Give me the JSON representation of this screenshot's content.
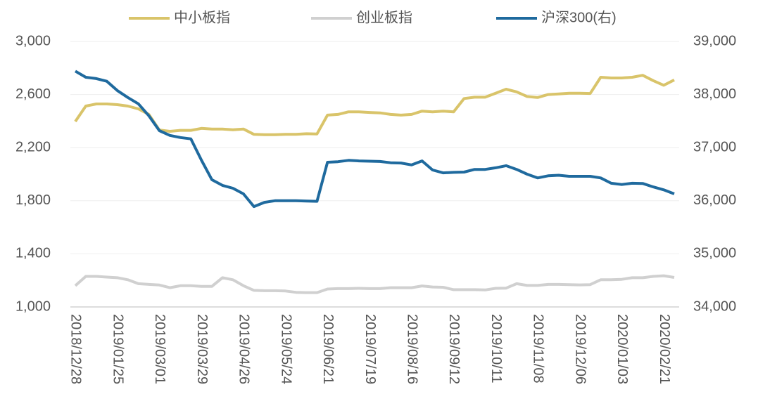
{
  "chart_data": {
    "type": "line",
    "categories": [
      "2018/12/28",
      null,
      null,
      null,
      "2019/01/25",
      null,
      null,
      null,
      "2019/03/01",
      null,
      null,
      null,
      "2019/03/29",
      null,
      null,
      null,
      "2019/04/26",
      null,
      null,
      null,
      "2019/05/24",
      null,
      null,
      null,
      "2019/06/21",
      null,
      null,
      null,
      "2019/07/19",
      null,
      null,
      null,
      "2019/08/16",
      null,
      null,
      null,
      "2019/09/12",
      null,
      null,
      null,
      "2019/10/11",
      null,
      null,
      null,
      "2019/11/08",
      null,
      null,
      null,
      "2019/12/06",
      null,
      null,
      null,
      "2020/01/03",
      null,
      null,
      null,
      "2020/02/21",
      null
    ],
    "series": [
      {
        "name": "中小板指",
        "color": "#d9c46a",
        "values": [
          2397,
          2513,
          2529,
          2529,
          2524,
          2513,
          2492,
          2450,
          2333,
          2323,
          2330,
          2330,
          2345,
          2340,
          2340,
          2335,
          2340,
          2300,
          2298,
          2298,
          2300,
          2300,
          2305,
          2303,
          2445,
          2450,
          2470,
          2470,
          2465,
          2462,
          2450,
          2445,
          2450,
          2475,
          2470,
          2475,
          2470,
          2570,
          2580,
          2580,
          2610,
          2640,
          2620,
          2585,
          2578,
          2600,
          2605,
          2610,
          2610,
          2608,
          2730,
          2725,
          2725,
          2730,
          2745,
          2705,
          2670,
          2710
        ]
      },
      {
        "name": "创业板指",
        "color": "#d0d0d0",
        "values": [
          1160,
          1230,
          1230,
          1225,
          1220,
          1205,
          1175,
          1170,
          1165,
          1145,
          1160,
          1160,
          1155,
          1155,
          1220,
          1205,
          1160,
          1125,
          1122,
          1122,
          1120,
          1110,
          1108,
          1108,
          1135,
          1138,
          1138,
          1140,
          1138,
          1138,
          1145,
          1145,
          1145,
          1158,
          1150,
          1148,
          1130,
          1130,
          1130,
          1128,
          1140,
          1142,
          1175,
          1162,
          1162,
          1170,
          1170,
          1168,
          1166,
          1168,
          1205,
          1205,
          1208,
          1220,
          1220,
          1230,
          1235,
          1222
        ]
      },
      {
        "name": "沪深300(右)",
        "color": "#1f6a9e",
        "axis": "y2",
        "values": [
          38440,
          38325,
          38300,
          38250,
          38075,
          37945,
          37825,
          37600,
          37320,
          37230,
          37190,
          37165,
          36765,
          36395,
          36290,
          36235,
          36130,
          35890,
          35970,
          36000,
          36000,
          36000,
          35995,
          35990,
          36725,
          36735,
          36760,
          36750,
          36745,
          36740,
          36715,
          36710,
          36675,
          36750,
          36580,
          36525,
          36535,
          36540,
          36590,
          36590,
          36620,
          36660,
          36590,
          36500,
          36430,
          36470,
          36480,
          36460,
          36460,
          36460,
          36430,
          36330,
          36305,
          36330,
          36325,
          36260,
          36205,
          36130
        ]
      }
    ],
    "ylim": [
      1000,
      3000
    ],
    "yticks": [
      {
        "value": 1000,
        "label": "1,000"
      },
      {
        "value": 1400,
        "label": "1,400"
      },
      {
        "value": 1800,
        "label": "1,800"
      },
      {
        "value": 2200,
        "label": "2,200"
      },
      {
        "value": 2600,
        "label": "2,600"
      },
      {
        "value": 3000,
        "label": "3,000"
      }
    ],
    "y2lim": [
      34000,
      39000
    ],
    "y2ticks": [
      {
        "value": 34000,
        "label": "34,000"
      },
      {
        "value": 35000,
        "label": "35,000"
      },
      {
        "value": 36000,
        "label": "36,000"
      },
      {
        "value": 37000,
        "label": "37,000"
      },
      {
        "value": 38000,
        "label": "38,000"
      },
      {
        "value": 39000,
        "label": "39,000"
      }
    ],
    "grid": true,
    "legend": "top"
  }
}
